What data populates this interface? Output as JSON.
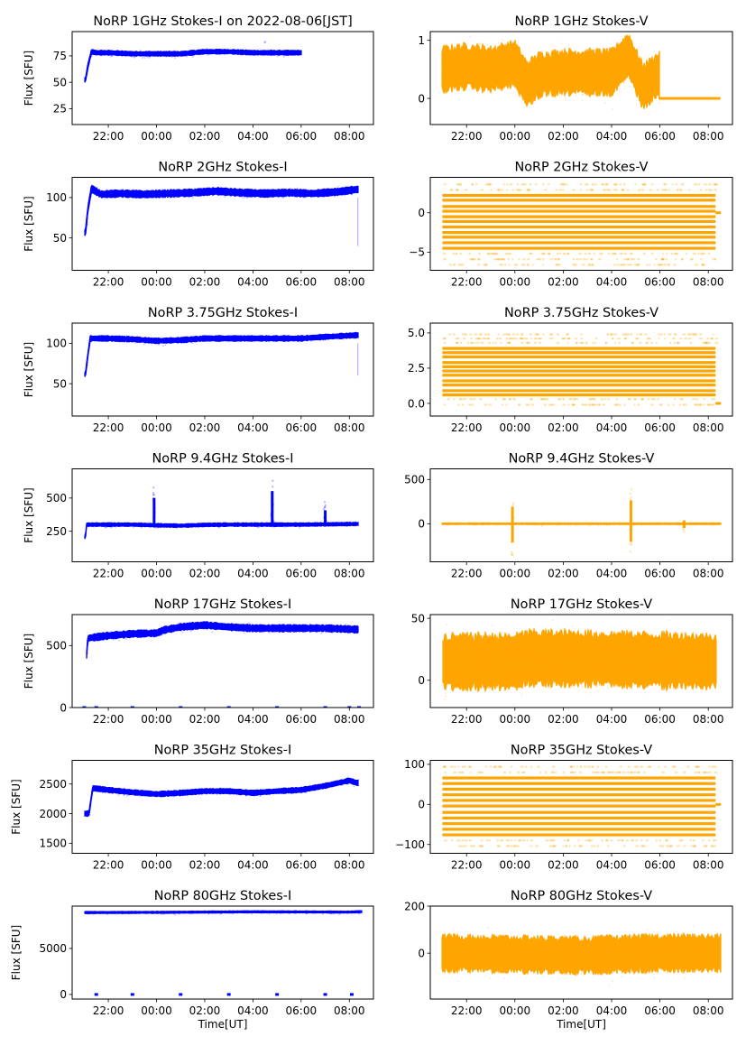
{
  "figure": {
    "date_note": "2022-08-06[JST]",
    "xlabel_bottom": "Time[UT]"
  },
  "colors": {
    "stokes_i": "#0000ff",
    "stokes_v": "#ffa500"
  },
  "chart_data": [
    {
      "type": "scatter",
      "panel": "1GHz Stokes-I",
      "title": "NoRP 1GHz Stokes-I on 2022-08-06[JST]",
      "xlabel": "",
      "ylabel": "Flux [SFU]",
      "xlim_hours_ut": [
        20.5,
        33.0
      ],
      "xticks": [
        "22:00",
        "00:00",
        "02:00",
        "04:00",
        "06:00",
        "08:00"
      ],
      "ylim": [
        10,
        98
      ],
      "yticks": [
        25,
        50,
        75
      ],
      "ytick_labels": [
        "25",
        "50",
        "75"
      ],
      "series": [
        {
          "name": "Stokes-I",
          "color": "#0000ff",
          "x_hours": [
            21.05,
            21.15,
            21.3,
            21.5,
            22.0,
            23.0,
            24.0,
            25.0,
            26.0,
            27.0,
            28.0,
            28.5,
            29.0,
            30.0
          ],
          "y": [
            52,
            65,
            79,
            78,
            78,
            77,
            77,
            77,
            79,
            79,
            78,
            78,
            78,
            78
          ],
          "spread": 2,
          "end_hour": 30.0
        }
      ],
      "annotations": [
        {
          "x_hour": 28.5,
          "y": 88,
          "note": "isolated outlier"
        }
      ]
    },
    {
      "type": "scatter",
      "panel": "1GHz Stokes-V",
      "title": "NoRP 1GHz Stokes-V",
      "xlabel": "",
      "ylabel": "",
      "xlim_hours_ut": [
        20.5,
        33.0
      ],
      "xticks": [
        "22:00",
        "00:00",
        "02:00",
        "04:00",
        "06:00",
        "08:00"
      ],
      "ylim": [
        -0.45,
        1.15
      ],
      "yticks": [
        0,
        1
      ],
      "ytick_labels": [
        "0",
        "1"
      ],
      "series": [
        {
          "name": "Stokes-V",
          "color": "#ffa500",
          "x_hours": [
            21.0,
            22.0,
            23.0,
            24.0,
            24.5,
            25.0,
            26.0,
            27.0,
            28.0,
            28.7,
            29.3,
            29.9
          ],
          "y": [
            0.5,
            0.55,
            0.5,
            0.6,
            0.25,
            0.4,
            0.45,
            0.45,
            0.45,
            0.75,
            0.2,
            0.4
          ],
          "spread": 0.35,
          "end_hour": 29.95,
          "flat_zero_from": 29.95,
          "flat_zero_to": 32.5
        }
      ]
    },
    {
      "type": "scatter",
      "panel": "2GHz Stokes-I",
      "title": "NoRP 2GHz Stokes-I",
      "xlabel": "",
      "ylabel": "Flux [SFU]",
      "xlim_hours_ut": [
        20.5,
        33.0
      ],
      "xticks": [
        "22:00",
        "00:00",
        "02:00",
        "04:00",
        "06:00",
        "08:00"
      ],
      "ylim": [
        10,
        125
      ],
      "yticks": [
        50,
        100
      ],
      "ytick_labels": [
        "50",
        "100"
      ],
      "series": [
        {
          "name": "Stokes-I",
          "color": "#0000ff",
          "x_hours": [
            21.05,
            21.15,
            21.3,
            21.7,
            22.5,
            23.5,
            24.5,
            25.5,
            26.5,
            27.5,
            28.5,
            29.5,
            30.5,
            31.5,
            32.3
          ],
          "y": [
            56,
            85,
            111,
            104,
            105,
            104,
            105,
            106,
            108,
            106,
            105,
            106,
            105,
            107,
            110
          ],
          "spread": 4,
          "end_hour": 32.35
        }
      ],
      "annotations": [
        {
          "x_hour": 32.35,
          "y_from": 40,
          "y_to": 100,
          "note": "sparse drop at end"
        }
      ]
    },
    {
      "type": "scatter",
      "panel": "2GHz Stokes-V",
      "title": "NoRP 2GHz Stokes-V",
      "xlabel": "",
      "ylabel": "",
      "xlim_hours_ut": [
        20.5,
        33.0
      ],
      "xticks": [
        "22:00",
        "00:00",
        "02:00",
        "04:00",
        "06:00",
        "08:00"
      ],
      "ylim": [
        -7.3,
        4.5
      ],
      "yticks": [
        -5,
        0
      ],
      "ytick_labels": [
        "−5",
        "0"
      ],
      "series": [
        {
          "name": "Stokes-V",
          "color": "#ffa500",
          "kind": "quantized-levels",
          "levels_dense": [
            2.2,
            1.6,
            0.8,
            0.2,
            -0.5,
            -1.1,
            -1.8,
            -2.5,
            -3.1,
            -3.8,
            -4.5
          ],
          "levels_sparse": [
            3.6,
            2.9,
            -5.2,
            -5.9,
            -6.6
          ],
          "start_hour": 21.0,
          "end_hour": 32.3
        }
      ]
    },
    {
      "type": "scatter",
      "panel": "3.75GHz Stokes-I",
      "title": "NoRP 3.75GHz Stokes-I",
      "xlabel": "",
      "ylabel": "Flux [SFU]",
      "xlim_hours_ut": [
        20.5,
        33.0
      ],
      "xticks": [
        "22:00",
        "00:00",
        "02:00",
        "04:00",
        "06:00",
        "08:00"
      ],
      "ylim": [
        10,
        125
      ],
      "yticks": [
        50,
        100
      ],
      "ytick_labels": [
        "50",
        "100"
      ],
      "series": [
        {
          "name": "Stokes-I",
          "color": "#0000ff",
          "x_hours": [
            21.05,
            21.15,
            21.25,
            22.0,
            23.0,
            24.0,
            25.0,
            26.0,
            27.0,
            28.0,
            29.0,
            30.0,
            31.0,
            32.3
          ],
          "y": [
            61,
            85,
            106,
            106,
            105,
            103,
            104,
            106,
            106,
            106,
            106,
            106,
            108,
            110
          ],
          "spread": 3,
          "end_hour": 32.35
        }
      ],
      "annotations": [
        {
          "x_hour": 32.35,
          "y_from": 60,
          "y_to": 100,
          "note": "sparse drop at end"
        }
      ]
    },
    {
      "type": "scatter",
      "panel": "3.75GHz Stokes-V",
      "title": "NoRP 3.75GHz Stokes-V",
      "xlabel": "",
      "ylabel": "",
      "xlim_hours_ut": [
        20.5,
        33.0
      ],
      "xticks": [
        "22:00",
        "00:00",
        "02:00",
        "04:00",
        "06:00",
        "08:00"
      ],
      "ylim": [
        -0.9,
        5.7
      ],
      "yticks": [
        0.0,
        2.5,
        5.0
      ],
      "ytick_labels": [
        "0.0",
        "2.5",
        "5.0"
      ],
      "series": [
        {
          "name": "Stokes-V",
          "color": "#ffa500",
          "kind": "quantized-levels",
          "levels_dense": [
            3.9,
            3.6,
            3.3,
            2.9,
            2.6,
            2.3,
            2.0,
            1.6,
            1.3,
            0.9,
            0.6
          ],
          "levels_sparse": [
            4.9,
            4.6,
            4.3,
            0.3,
            -0.1
          ],
          "start_hour": 21.0,
          "end_hour": 32.3
        }
      ]
    },
    {
      "type": "scatter",
      "panel": "9.4GHz Stokes-I",
      "title": "NoRP 9.4GHz Stokes-I",
      "xlabel": "",
      "ylabel": "Flux [SFU]",
      "xlim_hours_ut": [
        20.5,
        33.0
      ],
      "xticks": [
        "22:00",
        "00:00",
        "02:00",
        "04:00",
        "06:00",
        "08:00"
      ],
      "ylim": [
        20,
        720
      ],
      "yticks": [
        250,
        500
      ],
      "ytick_labels": [
        "250",
        "500"
      ],
      "series": [
        {
          "name": "Stokes-I",
          "color": "#0000ff",
          "x_hours": [
            21.05,
            21.1,
            22.0,
            23.0,
            24.0,
            25.0,
            26.0,
            27.0,
            28.0,
            29.0,
            30.0,
            31.0,
            32.3
          ],
          "y": [
            205,
            300,
            300,
            300,
            295,
            292,
            298,
            300,
            300,
            300,
            300,
            302,
            305
          ],
          "spread": 12,
          "end_hour": 32.35
        }
      ],
      "annotations": [
        {
          "x_hour": 23.9,
          "peak": 590,
          "note": "flare spike"
        },
        {
          "x_hour": 28.8,
          "peak": 650,
          "note": "flare spike"
        },
        {
          "x_hour": 31.0,
          "peak": 480,
          "note": "flare spike"
        }
      ]
    },
    {
      "type": "scatter",
      "panel": "9.4GHz Stokes-V",
      "title": "NoRP 9.4GHz Stokes-V",
      "xlabel": "",
      "ylabel": "",
      "xlim_hours_ut": [
        20.5,
        33.0
      ],
      "xticks": [
        "22:00",
        "00:00",
        "02:00",
        "04:00",
        "06:00",
        "08:00"
      ],
      "ylim": [
        -430,
        620
      ],
      "yticks": [
        0,
        500
      ],
      "ytick_labels": [
        "0",
        "500"
      ],
      "series": [
        {
          "name": "Stokes-V",
          "color": "#ffa500",
          "x_hours": [
            21.0,
            32.5
          ],
          "y": [
            0,
            0
          ],
          "spread": 8
        }
      ],
      "annotations": [
        {
          "x_hour": 23.9,
          "max": 320,
          "min": -350,
          "note": "spike"
        },
        {
          "x_hour": 28.8,
          "max": 440,
          "min": -340,
          "note": "spike"
        },
        {
          "x_hour": 31.0,
          "max": 60,
          "min": -80,
          "note": "spike"
        }
      ]
    },
    {
      "type": "scatter",
      "panel": "17GHz Stokes-I",
      "title": "NoRP 17GHz Stokes-I",
      "xlabel": "",
      "ylabel": "Flux [SFU]",
      "xlim_hours_ut": [
        20.5,
        33.0
      ],
      "xticks": [
        "22:00",
        "00:00",
        "02:00",
        "04:00",
        "06:00",
        "08:00"
      ],
      "ylim": [
        0,
        750
      ],
      "yticks": [
        0,
        500
      ],
      "ytick_labels": [
        "0",
        "500"
      ],
      "series": [
        {
          "name": "Stokes-I",
          "color": "#0000ff",
          "x_hours": [
            21.1,
            21.15,
            22.0,
            23.0,
            24.0,
            24.3,
            25.0,
            26.0,
            27.0,
            28.0,
            29.0,
            30.0,
            31.0,
            32.3
          ],
          "y": [
            420,
            560,
            580,
            595,
            600,
            625,
            650,
            665,
            650,
            640,
            640,
            640,
            640,
            630
          ],
          "spread": 25,
          "end_hour": 32.35
        }
      ],
      "annotations": [
        {
          "x_hours": [
            21.0,
            21.5,
            23.0,
            25.0,
            27.0,
            29.0,
            31.0,
            32.0,
            32.4
          ],
          "y": 0,
          "note": "zero-valued gaps"
        }
      ]
    },
    {
      "type": "scatter",
      "panel": "17GHz Stokes-V",
      "title": "NoRP 17GHz Stokes-V",
      "xlabel": "",
      "ylabel": "",
      "xlim_hours_ut": [
        20.5,
        33.0
      ],
      "xticks": [
        "22:00",
        "00:00",
        "02:00",
        "04:00",
        "06:00",
        "08:00"
      ],
      "ylim": [
        -22,
        53
      ],
      "yticks": [
        0,
        50
      ],
      "ytick_labels": [
        "0",
        "50"
      ],
      "series": [
        {
          "name": "Stokes-V",
          "color": "#ffa500",
          "x_hours": [
            21.0,
            24.0,
            24.5,
            28.0,
            32.3
          ],
          "y": [
            15,
            15,
            18,
            17,
            15
          ],
          "spread": 20,
          "start_hour": 21.05,
          "end_hour": 32.3
        }
      ]
    },
    {
      "type": "scatter",
      "panel": "35GHz Stokes-I",
      "title": "NoRP 35GHz Stokes-I",
      "xlabel": "",
      "ylabel": "Flux [SFU]",
      "xlim_hours_ut": [
        20.5,
        33.0
      ],
      "xticks": [
        "22:00",
        "00:00",
        "02:00",
        "04:00",
        "06:00",
        "08:00"
      ],
      "ylim": [
        1330,
        2900
      ],
      "yticks": [
        1500,
        2000,
        2500
      ],
      "ytick_labels": [
        "1500",
        "2000",
        "2500"
      ],
      "series": [
        {
          "name": "Stokes-I",
          "color": "#0000ff",
          "x_hours": [
            21.05,
            21.2,
            21.35,
            22.0,
            23.0,
            24.0,
            25.0,
            26.0,
            27.0,
            28.0,
            29.0,
            30.0,
            31.0,
            32.0,
            32.3
          ],
          "y": [
            2000,
            2000,
            2430,
            2400,
            2360,
            2330,
            2350,
            2380,
            2380,
            2350,
            2380,
            2400,
            2470,
            2560,
            2520
          ],
          "spread": 40,
          "end_hour": 32.35
        }
      ]
    },
    {
      "type": "scatter",
      "panel": "35GHz Stokes-V",
      "title": "NoRP 35GHz Stokes-V",
      "xlabel": "",
      "ylabel": "",
      "xlim_hours_ut": [
        20.5,
        33.0
      ],
      "xticks": [
        "22:00",
        "00:00",
        "02:00",
        "04:00",
        "06:00",
        "08:00"
      ],
      "ylim": [
        -122,
        110
      ],
      "yticks": [
        -100,
        0,
        100
      ],
      "ytick_labels": [
        "−100",
        "0",
        "100"
      ],
      "series": [
        {
          "name": "Stokes-V",
          "color": "#ffa500",
          "kind": "quantized-levels",
          "levels_dense": [
            66,
            52,
            38,
            24,
            10,
            -4,
            -20,
            -34,
            -48,
            -62,
            -76
          ],
          "levels_sparse": [
            94,
            80,
            -90,
            -104
          ],
          "start_hour": 21.0,
          "end_hour": 32.3
        }
      ]
    },
    {
      "type": "scatter",
      "panel": "80GHz Stokes-I",
      "title": "NoRP 80GHz Stokes-I",
      "xlabel": "Time[UT]",
      "ylabel": "Flux [SFU]",
      "xlim_hours_ut": [
        20.5,
        33.0
      ],
      "xticks": [
        "22:00",
        "00:00",
        "02:00",
        "04:00",
        "06:00",
        "08:00"
      ],
      "ylim": [
        -500,
        9600
      ],
      "yticks": [
        0,
        5000
      ],
      "ytick_labels": [
        "0",
        "5000"
      ],
      "series": [
        {
          "name": "Stokes-I",
          "color": "#0000ff",
          "x_hours": [
            21.05,
            24.0,
            28.0,
            32.0,
            32.5
          ],
          "y": [
            8900,
            8920,
            8980,
            8950,
            9000
          ],
          "spread": 100,
          "end_hour": 32.5
        }
      ],
      "annotations": [
        {
          "x_hours": [
            21.5,
            23.0,
            25.0,
            27.0,
            29.0,
            31.0,
            32.1
          ],
          "y": 0,
          "note": "zero-valued gaps"
        }
      ]
    },
    {
      "type": "scatter",
      "panel": "80GHz Stokes-V",
      "title": "NoRP 80GHz Stokes-V",
      "xlabel": "Time[UT]",
      "ylabel": "",
      "xlim_hours_ut": [
        20.5,
        33.0
      ],
      "xticks": [
        "22:00",
        "00:00",
        "02:00",
        "04:00",
        "06:00",
        "08:00"
      ],
      "ylim": [
        -195,
        200
      ],
      "yticks": [
        0,
        200
      ],
      "ytick_labels": [
        "0",
        "200"
      ],
      "series": [
        {
          "name": "Stokes-V",
          "color": "#ffa500",
          "x_hours": [
            21.0,
            24.0,
            27.0,
            28.0,
            30.0,
            32.5
          ],
          "y": [
            0,
            -5,
            -10,
            -5,
            0,
            0
          ],
          "spread": 70,
          "start_hour": 21.0,
          "end_hour": 32.5
        }
      ]
    }
  ]
}
